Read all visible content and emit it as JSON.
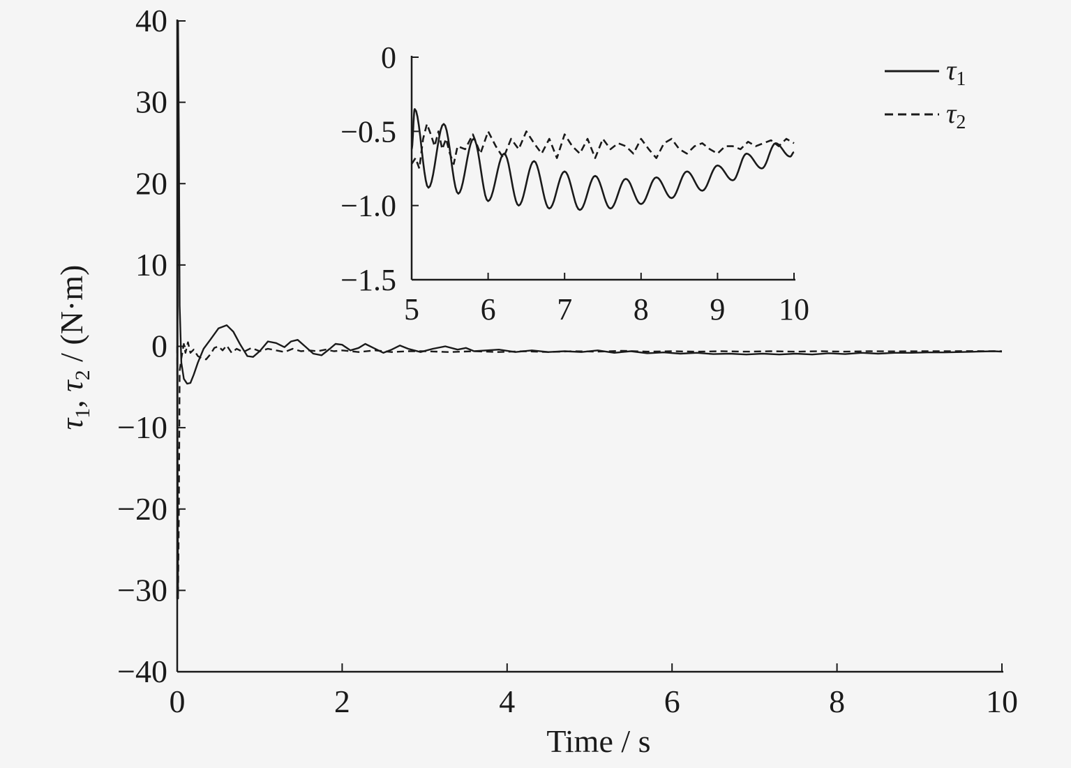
{
  "chart_data": [
    {
      "id": "main",
      "type": "line",
      "xlabel": "Time / s",
      "ylabel": "τ1, τ2 / (N·m)",
      "xlim": [
        0,
        10
      ],
      "ylim": [
        -40,
        40
      ],
      "xticks": [
        0,
        2,
        4,
        6,
        8,
        10
      ],
      "yticks": [
        -40,
        -30,
        -20,
        -10,
        0,
        10,
        20,
        30,
        40
      ],
      "xtick_labels": [
        "0",
        "2",
        "4",
        "6",
        "8",
        "10"
      ],
      "ytick_labels": [
        "−40",
        "−30",
        "−20",
        "−10",
        "0",
        "10",
        "20",
        "30",
        "40"
      ],
      "grid": false,
      "legend_position": "top-right",
      "series": [
        {
          "name": "τ1",
          "style": "solid",
          "x": [
            0,
            0.01,
            0.02,
            0.03,
            0.05,
            0.08,
            0.12,
            0.16,
            0.2,
            0.25,
            0.32,
            0.4,
            0.5,
            0.6,
            0.68,
            0.76,
            0.85,
            0.92,
            1.0,
            1.1,
            1.2,
            1.3,
            1.38,
            1.46,
            1.55,
            1.65,
            1.75,
            1.85,
            1.92,
            2.0,
            2.1,
            2.2,
            2.28,
            2.38,
            2.5,
            2.6,
            2.7,
            2.8,
            2.95,
            3.1,
            3.25,
            3.4,
            3.5,
            3.6,
            3.75,
            3.9,
            4.1,
            4.3,
            4.5,
            4.7,
            4.9,
            5.1,
            5.3,
            5.5,
            5.7,
            5.9,
            6.1,
            6.3,
            6.5,
            6.7,
            6.9,
            7.1,
            7.3,
            7.5,
            7.7,
            7.9,
            8.1,
            8.3,
            8.5,
            8.7,
            8.9,
            9.1,
            9.3,
            9.5,
            9.7,
            9.9,
            10.0
          ],
          "values": [
            -31,
            40,
            25,
            5,
            -2,
            -4,
            -4.6,
            -4.5,
            -3.5,
            -2,
            -0.3,
            0.8,
            2.2,
            2.6,
            1.8,
            0.3,
            -1.2,
            -1.3,
            -0.6,
            0.6,
            0.4,
            -0.1,
            0.6,
            0.8,
            0.0,
            -0.9,
            -1.1,
            -0.3,
            0.3,
            0.2,
            -0.5,
            -0.2,
            0.3,
            -0.2,
            -0.8,
            -0.4,
            0.1,
            -0.3,
            -0.7,
            -0.3,
            0.0,
            -0.4,
            -0.2,
            -0.6,
            -0.5,
            -0.4,
            -0.7,
            -0.5,
            -0.7,
            -0.6,
            -0.7,
            -0.5,
            -0.8,
            -0.6,
            -0.85,
            -0.75,
            -0.9,
            -0.8,
            -0.95,
            -0.9,
            -1.0,
            -0.9,
            -1.0,
            -0.9,
            -1.0,
            -0.85,
            -0.95,
            -0.8,
            -0.9,
            -0.8,
            -0.8,
            -0.75,
            -0.75,
            -0.7,
            -0.65,
            -0.6,
            -0.65
          ]
        },
        {
          "name": "τ2",
          "style": "dashed",
          "x": [
            0,
            0.01,
            0.02,
            0.03,
            0.05,
            0.08,
            0.1,
            0.13,
            0.16,
            0.2,
            0.25,
            0.3,
            0.35,
            0.4,
            0.45,
            0.5,
            0.55,
            0.6,
            0.66,
            0.72,
            0.8,
            0.9,
            1.0,
            1.1,
            1.2,
            1.3,
            1.4,
            1.5,
            1.6,
            1.7,
            1.8,
            1.9,
            2.0,
            2.2,
            2.4,
            2.6,
            2.8,
            3.0,
            3.3,
            3.6,
            3.9,
            4.2,
            4.5,
            4.8,
            5.1,
            5.4,
            5.7,
            6.0,
            6.3,
            6.6,
            6.9,
            7.2,
            7.5,
            7.8,
            8.1,
            8.4,
            8.7,
            9.0,
            9.3,
            9.6,
            10.0
          ],
          "values": [
            0,
            -31,
            -20,
            -3,
            -1.5,
            0.3,
            -0.8,
            0.5,
            -0.8,
            -0.4,
            -1.2,
            -1.5,
            -1.6,
            -1.0,
            -0.2,
            0.0,
            -0.5,
            0.1,
            -0.8,
            -0.3,
            -0.7,
            -0.2,
            -0.6,
            -0.3,
            -0.5,
            -0.7,
            -0.3,
            -0.6,
            -0.5,
            -0.6,
            -0.4,
            -0.6,
            -0.5,
            -0.7,
            -0.5,
            -0.7,
            -0.6,
            -0.6,
            -0.7,
            -0.6,
            -0.7,
            -0.6,
            -0.7,
            -0.6,
            -0.65,
            -0.55,
            -0.65,
            -0.6,
            -0.65,
            -0.6,
            -0.65,
            -0.6,
            -0.65,
            -0.6,
            -0.65,
            -0.6,
            -0.62,
            -0.6,
            -0.6,
            -0.58,
            -0.6
          ]
        }
      ]
    },
    {
      "id": "inset",
      "type": "line",
      "xlim": [
        5,
        10
      ],
      "ylim": [
        -1.5,
        0
      ],
      "xticks": [
        5,
        6,
        7,
        8,
        9,
        10
      ],
      "yticks": [
        0,
        -0.5,
        -1.0,
        -1.5
      ],
      "xtick_labels": [
        "5",
        "6",
        "7",
        "8",
        "9",
        "10"
      ],
      "ytick_labels": [
        "0",
        "−0.5",
        "−1.0",
        "−1.5"
      ],
      "grid": false,
      "series": [
        {
          "name": "τ1",
          "style": "solid",
          "peaks": [
            [
              5.04,
              -0.35
            ],
            [
              5.42,
              -0.45
            ],
            [
              5.81,
              -0.55
            ],
            [
              6.21,
              -0.65
            ],
            [
              6.6,
              -0.7
            ],
            [
              7.0,
              -0.77
            ],
            [
              7.4,
              -0.8
            ],
            [
              7.8,
              -0.82
            ],
            [
              8.2,
              -0.81
            ],
            [
              8.6,
              -0.77
            ],
            [
              9.0,
              -0.73
            ],
            [
              9.38,
              -0.65
            ],
            [
              9.76,
              -0.58
            ]
          ],
          "troughs": [
            [
              5.0,
              -0.62
            ],
            [
              5.22,
              -0.88
            ],
            [
              5.61,
              -0.92
            ],
            [
              6.0,
              -0.97
            ],
            [
              6.4,
              -1.0
            ],
            [
              6.8,
              -1.02
            ],
            [
              7.2,
              -1.03
            ],
            [
              7.6,
              -1.02
            ],
            [
              8.0,
              -0.99
            ],
            [
              8.4,
              -0.95
            ],
            [
              8.8,
              -0.9
            ],
            [
              9.2,
              -0.83
            ],
            [
              9.58,
              -0.75
            ],
            [
              9.95,
              -0.67
            ],
            [
              10.0,
              -0.64
            ]
          ]
        },
        {
          "name": "τ2",
          "style": "dashed",
          "x": [
            5.0,
            5.05,
            5.1,
            5.15,
            5.2,
            5.25,
            5.3,
            5.35,
            5.4,
            5.45,
            5.5,
            5.55,
            5.6,
            5.7,
            5.8,
            5.9,
            6.0,
            6.1,
            6.2,
            6.3,
            6.4,
            6.5,
            6.6,
            6.7,
            6.8,
            6.9,
            7.0,
            7.1,
            7.2,
            7.3,
            7.4,
            7.5,
            7.6,
            7.7,
            7.8,
            7.9,
            8.0,
            8.1,
            8.2,
            8.3,
            8.4,
            8.5,
            8.6,
            8.7,
            8.8,
            8.9,
            9.0,
            9.1,
            9.2,
            9.3,
            9.4,
            9.5,
            9.6,
            9.7,
            9.8,
            9.9,
            10.0
          ],
          "values": [
            -0.72,
            -0.68,
            -0.75,
            -0.55,
            -0.45,
            -0.52,
            -0.6,
            -0.5,
            -0.62,
            -0.55,
            -0.65,
            -0.72,
            -0.6,
            -0.62,
            -0.52,
            -0.65,
            -0.5,
            -0.6,
            -0.68,
            -0.55,
            -0.62,
            -0.5,
            -0.58,
            -0.65,
            -0.55,
            -0.68,
            -0.52,
            -0.6,
            -0.65,
            -0.55,
            -0.68,
            -0.55,
            -0.62,
            -0.58,
            -0.6,
            -0.65,
            -0.55,
            -0.62,
            -0.68,
            -0.58,
            -0.55,
            -0.62,
            -0.65,
            -0.6,
            -0.58,
            -0.62,
            -0.65,
            -0.6,
            -0.6,
            -0.62,
            -0.57,
            -0.6,
            -0.58,
            -0.56,
            -0.6,
            -0.55,
            -0.58
          ]
        }
      ]
    }
  ],
  "legend": {
    "entries": [
      {
        "label": "τ",
        "sub": "1",
        "style": "solid"
      },
      {
        "label": "τ",
        "sub": "2",
        "style": "dashed"
      }
    ]
  },
  "ylabel_parts": {
    "t1": "τ",
    "s1": "1",
    "sep": ", ",
    "t2": "τ",
    "s2": "2",
    "unit": " / (N·m)"
  }
}
